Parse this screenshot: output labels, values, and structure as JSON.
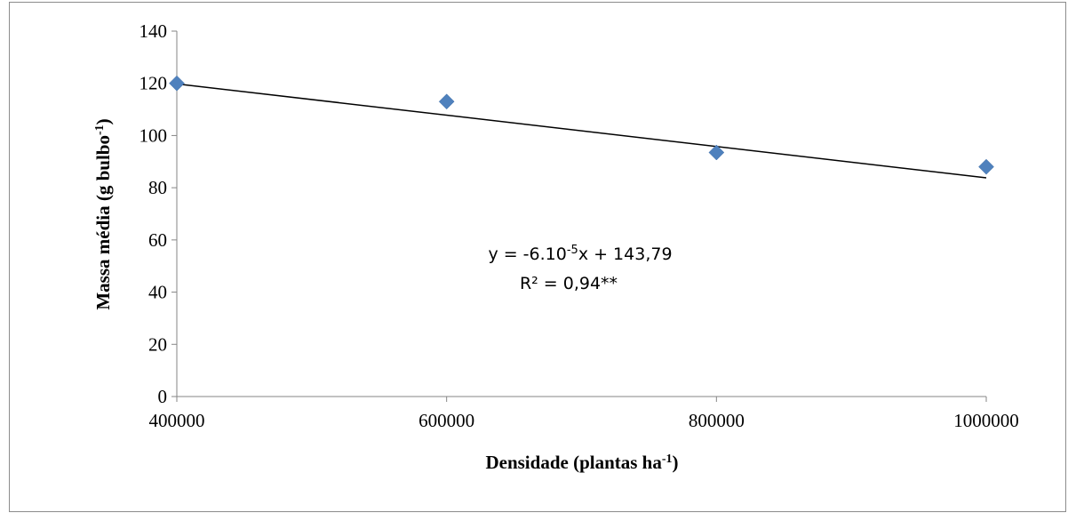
{
  "chart_data": {
    "type": "scatter",
    "x": [
      400000,
      600000,
      800000,
      1000000
    ],
    "y": [
      120,
      113,
      93.5,
      88
    ],
    "xlim": [
      400000,
      1000000
    ],
    "ylim": [
      0,
      140
    ],
    "xticks": [
      400000,
      600000,
      800000,
      1000000
    ],
    "yticks": [
      0,
      20,
      40,
      60,
      80,
      100,
      120,
      140
    ],
    "xlabel": {
      "main": "Densidade (plantas ha",
      "sup": "-1",
      "end": ")"
    },
    "ylabel": {
      "main": "Massa média (g bulbo",
      "sup": "-1",
      "end": ")"
    },
    "trendline": {
      "slope": -6e-05,
      "intercept": 143.79
    },
    "equation": {
      "prefix": "y = -6.10",
      "sup": "-5",
      "suffix": "x + 143,79"
    },
    "r2": "R² = 0,94**",
    "marker_color": "#4f81bd",
    "line_color": "#000000",
    "grid": false,
    "legend": "none"
  }
}
